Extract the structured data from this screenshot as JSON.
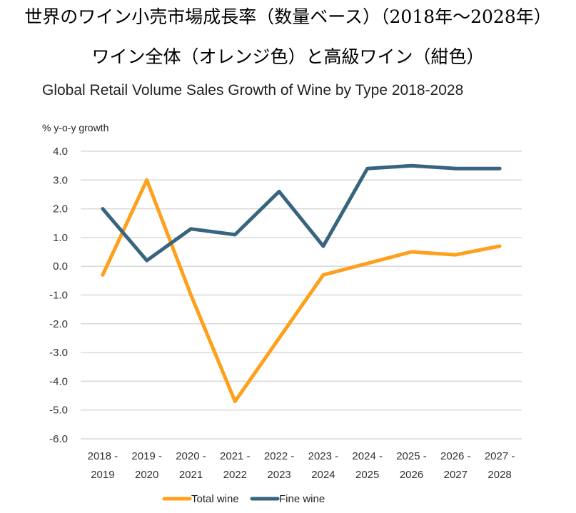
{
  "header": {
    "title_line1": "世界のワイン小売市場成長率（数量ベース）（2018年〜2028年）",
    "title_line2": "ワイン全体（オレンジ色）と高級ワイン（紺色）"
  },
  "chart_data": {
    "type": "line",
    "title": "Global Retail Volume Sales Growth of Wine by Type 2018-2028",
    "subtitle": "% y-o-y growth",
    "xlabel": "",
    "ylabel": "% y-o-y growth",
    "categories": [
      [
        "2018 -",
        "2019"
      ],
      [
        "2019 -",
        "2020"
      ],
      [
        "2020 -",
        "2021"
      ],
      [
        "2021 -",
        "2022"
      ],
      [
        "2022 -",
        "2023"
      ],
      [
        "2023 -",
        "2024"
      ],
      [
        "2024 -",
        "2025"
      ],
      [
        "2025 -",
        "2026"
      ],
      [
        "2026 -",
        "2027"
      ],
      [
        "2027 -",
        "2028"
      ]
    ],
    "ylim": [
      -6.0,
      4.0
    ],
    "yticks": [
      "4.0",
      "3.0",
      "2.0",
      "1.0",
      "0.0",
      "-1.0",
      "-2.0",
      "-3.0",
      "-4.0",
      "-5.0",
      "-6.0"
    ],
    "ytick_values": [
      4,
      3,
      2,
      1,
      0,
      -1,
      -2,
      -3,
      -4,
      -5,
      -6
    ],
    "grid": true,
    "legend_position": "bottom",
    "series": [
      {
        "name": "Total wine",
        "color": "#FFA01C",
        "values": [
          -0.3,
          3.0,
          -1.0,
          -4.7,
          -2.5,
          -0.3,
          0.1,
          0.5,
          0.4,
          0.7
        ]
      },
      {
        "name": "Fine wine",
        "color": "#37647E",
        "values": [
          2.0,
          0.2,
          1.3,
          1.1,
          2.6,
          0.7,
          3.4,
          3.5,
          3.4,
          3.4
        ]
      }
    ]
  }
}
